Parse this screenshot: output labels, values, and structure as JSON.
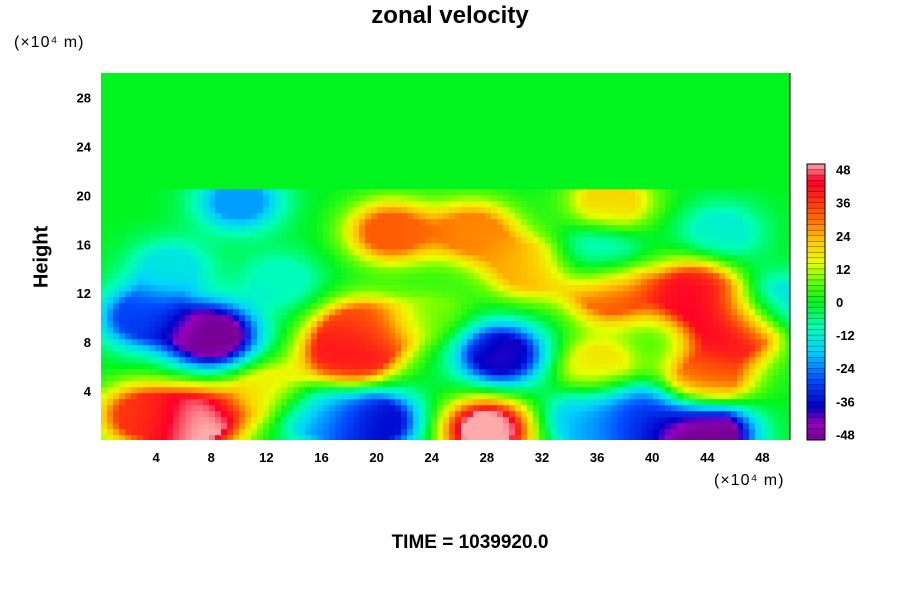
{
  "chart_data": {
    "type": "heatmap",
    "title": "zonal velocity",
    "ylabel": "Height",
    "y_unit": "(×10⁴ m)",
    "x_unit": "(×10⁴ m)",
    "x_ticks": [
      4,
      8,
      12,
      16,
      20,
      24,
      28,
      32,
      36,
      40,
      44,
      48
    ],
    "y_ticks": [
      4,
      8,
      12,
      16,
      20,
      24,
      28
    ],
    "xlim": [
      0,
      50
    ],
    "ylim": [
      0,
      30
    ],
    "colorbar": {
      "ticks": [
        48,
        36,
        24,
        12,
        0,
        -12,
        -24,
        -36,
        -48
      ],
      "range": [
        -50,
        50
      ]
    },
    "background_value": 0,
    "features": [
      {
        "x": 8,
        "y": 8.5,
        "value": -52
      },
      {
        "x": 3,
        "y": 10,
        "value": -30
      },
      {
        "x": 10,
        "y": 19.5,
        "value": -22
      },
      {
        "x": 7,
        "y": 1.5,
        "value": 52
      },
      {
        "x": 3,
        "y": 2,
        "value": 36
      },
      {
        "x": 20,
        "y": 1.5,
        "value": -38
      },
      {
        "x": 16,
        "y": 2,
        "value": -22
      },
      {
        "x": 28,
        "y": 0.8,
        "value": 52
      },
      {
        "x": 29,
        "y": 7,
        "value": -40
      },
      {
        "x": 35,
        "y": 1.5,
        "value": -20
      },
      {
        "x": 39,
        "y": 2,
        "value": -34
      },
      {
        "x": 44,
        "y": 0.5,
        "value": -55
      },
      {
        "x": 19,
        "y": 9,
        "value": 34
      },
      {
        "x": 18,
        "y": 7,
        "value": 44
      },
      {
        "x": 21,
        "y": 17,
        "value": 32
      },
      {
        "x": 27,
        "y": 17,
        "value": 28
      },
      {
        "x": 31,
        "y": 14,
        "value": 24
      },
      {
        "x": 37,
        "y": 12,
        "value": 34
      },
      {
        "x": 43,
        "y": 12,
        "value": 44
      },
      {
        "x": 44,
        "y": 5,
        "value": 32
      },
      {
        "x": 46,
        "y": 9,
        "value": 46
      },
      {
        "x": 36,
        "y": 15,
        "value": -16
      },
      {
        "x": 45,
        "y": 17,
        "value": -12
      },
      {
        "x": 13,
        "y": 13,
        "value": -10
      },
      {
        "x": 5,
        "y": 14,
        "value": -14
      },
      {
        "x": 37,
        "y": 19.5,
        "value": 20
      },
      {
        "x": 36,
        "y": 6,
        "value": 18
      },
      {
        "x": 49,
        "y": 11,
        "value": -18
      },
      {
        "x": 12,
        "y": 4,
        "value": 18
      },
      {
        "x": 24,
        "y": 10,
        "value": 8
      }
    ],
    "upper_boundary_y": 20.5,
    "time_label": "TIME = 1039920.0"
  }
}
